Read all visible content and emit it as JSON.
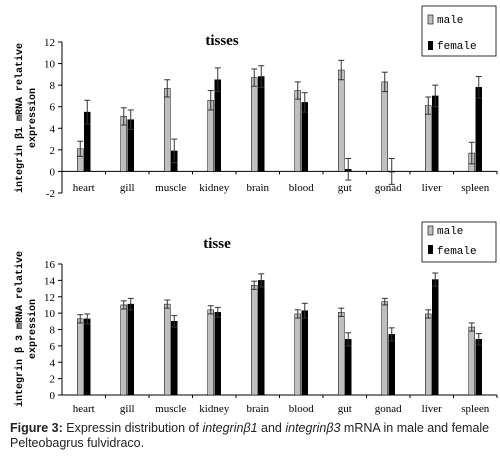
{
  "chart_data": [
    {
      "type": "bar",
      "title": "tisses",
      "ylabel_line1": "integrin β1 mRNA relative",
      "ylabel_line2": "expression",
      "xlabel": "",
      "ylim": [
        -2,
        12
      ],
      "yticks": [
        -2,
        0,
        2,
        4,
        6,
        8,
        10,
        12
      ],
      "grid": false,
      "legend_position": "top-right",
      "categories": [
        "heart",
        "gill",
        "muscle",
        "kidney",
        "brain",
        "blood",
        "gut",
        "gonad",
        "liver",
        "spleen"
      ],
      "series": [
        {
          "name": "male",
          "color": "#bfbfbf",
          "values": [
            2.1,
            5.1,
            7.7,
            6.6,
            8.7,
            7.5,
            9.4,
            8.3,
            6.1,
            1.7
          ],
          "errors": [
            0.7,
            0.8,
            0.8,
            0.9,
            0.8,
            0.8,
            0.9,
            0.9,
            0.8,
            1.0
          ]
        },
        {
          "name": "female",
          "color": "#000000",
          "values": [
            5.5,
            4.8,
            1.9,
            8.5,
            8.8,
            6.4,
            0.2,
            0.0,
            7.0,
            7.8
          ],
          "errors": [
            1.1,
            0.9,
            1.1,
            1.1,
            1.0,
            0.9,
            1.0,
            1.2,
            1.0,
            1.0
          ]
        }
      ]
    },
    {
      "type": "bar",
      "title": "tisse",
      "ylabel_line1": "integrin β 3 mRNA relative",
      "ylabel_line2": "expression",
      "xlabel": "",
      "ylim": [
        0,
        16
      ],
      "yticks": [
        0,
        2,
        4,
        6,
        8,
        10,
        12,
        14,
        16
      ],
      "grid": false,
      "legend_position": "top-right",
      "categories": [
        "heart",
        "gill",
        "muscle",
        "kidney",
        "brain",
        "blood",
        "gut",
        "gonad",
        "liver",
        "spleen"
      ],
      "series": [
        {
          "name": "male",
          "color": "#bfbfbf",
          "values": [
            9.3,
            11.0,
            11.1,
            10.4,
            13.4,
            9.9,
            10.1,
            11.4,
            9.9,
            8.3
          ],
          "errors": [
            0.5,
            0.5,
            0.5,
            0.5,
            0.5,
            0.5,
            0.5,
            0.4,
            0.5,
            0.5
          ]
        },
        {
          "name": "female",
          "color": "#000000",
          "values": [
            9.3,
            11.1,
            9.0,
            10.1,
            14.0,
            10.3,
            6.8,
            7.4,
            14.1,
            6.8
          ],
          "errors": [
            0.6,
            0.7,
            0.7,
            0.6,
            0.8,
            0.9,
            0.8,
            0.8,
            0.8,
            0.7
          ]
        }
      ]
    }
  ],
  "caption": {
    "label": "Figure 3:",
    "text_1": " Expressin distribution of ",
    "gene_1": "integrinβ1",
    "text_2": " and ",
    "gene_2": "integrinβ3",
    "text_3": " mRNA in male and female Pelteobagrus fulvidraco."
  }
}
